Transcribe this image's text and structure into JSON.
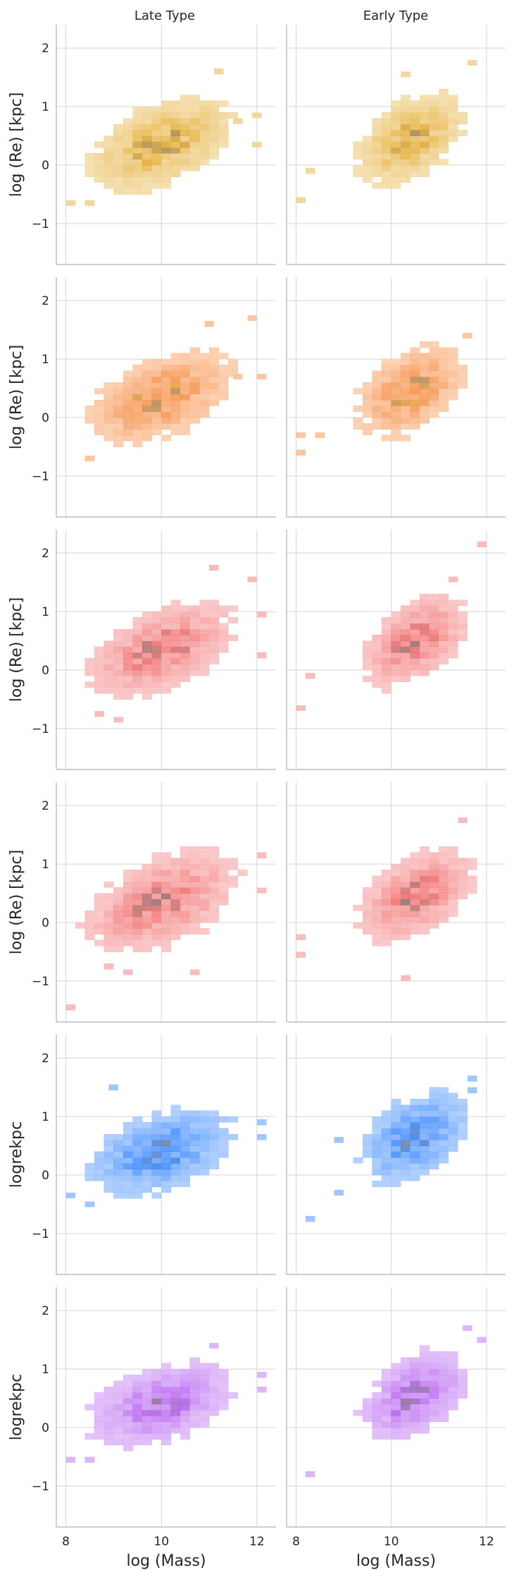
{
  "chart_data": {
    "type": "heatmap",
    "description_kind": "2D histogram facet grid",
    "columns": [
      "Late Type",
      "Early Type"
    ],
    "xlabel": "log (Mass)",
    "xlim": [
      7.8,
      12.4
    ],
    "xticks": [
      8,
      10,
      12
    ],
    "ylim": [
      -1.7,
      2.4
    ],
    "yticks": [
      -1,
      0,
      1,
      2
    ],
    "bin_width_x": 0.2,
    "bin_height_y": 0.1,
    "rows": [
      {
        "ylabel": "log (Re) [kpc]",
        "color": "#e3a92a",
        "panels": [
          {
            "center_x": 10.0,
            "center_y": 0.35,
            "spread_x": 0.75,
            "spread_y": 0.35,
            "slope": 0.25,
            "xmin": 8.0,
            "xmax": 12.2,
            "peak": "#8c7a5c",
            "outliers": [
              [
                8.1,
                -0.65
              ],
              [
                8.5,
                -0.65
              ],
              [
                11.2,
                1.6
              ],
              [
                12.0,
                0.85
              ],
              [
                12.0,
                0.35
              ],
              [
                11.6,
                0.75
              ]
            ]
          },
          {
            "center_x": 10.4,
            "center_y": 0.45,
            "spread_x": 0.55,
            "spread_y": 0.35,
            "slope": 0.3,
            "xmin": 8.0,
            "xmax": 11.9,
            "peak": "#8c7a5c",
            "outliers": [
              [
                8.1,
                -0.6
              ],
              [
                11.7,
                1.75
              ],
              [
                10.3,
                1.55
              ],
              [
                8.3,
                -0.1
              ]
            ]
          }
        ]
      },
      {
        "ylabel": "log (Re) [kpc]",
        "color": "#f58231",
        "accent": "#f0a030",
        "panels": [
          {
            "center_x": 10.0,
            "center_y": 0.35,
            "spread_x": 0.75,
            "spread_y": 0.35,
            "slope": 0.25,
            "xmin": 8.0,
            "xmax": 12.2,
            "peak": "#8a7466",
            "outliers": [
              [
                8.5,
                -0.7
              ],
              [
                11.0,
                1.6
              ],
              [
                11.9,
                1.7
              ],
              [
                12.1,
                0.7
              ],
              [
                11.6,
                0.7
              ]
            ]
          },
          {
            "center_x": 10.4,
            "center_y": 0.45,
            "spread_x": 0.55,
            "spread_y": 0.35,
            "slope": 0.3,
            "xmin": 8.0,
            "xmax": 11.9,
            "peak": "#8a7466",
            "outliers": [
              [
                8.1,
                -0.6
              ],
              [
                8.1,
                -0.3
              ],
              [
                8.5,
                -0.3
              ],
              [
                11.6,
                1.4
              ]
            ]
          }
        ]
      },
      {
        "ylabel": "log (Re) [kpc]",
        "color": "#f26b6b",
        "panels": [
          {
            "center_x": 10.0,
            "center_y": 0.35,
            "spread_x": 0.75,
            "spread_y": 0.35,
            "slope": 0.25,
            "xmin": 8.0,
            "xmax": 12.2,
            "peak": "#8a6a6a",
            "outliers": [
              [
                9.1,
                -0.85
              ],
              [
                8.7,
                -0.75
              ],
              [
                11.1,
                1.75
              ],
              [
                11.9,
                1.55
              ],
              [
                12.1,
                0.95
              ],
              [
                12.1,
                0.25
              ]
            ]
          },
          {
            "center_x": 10.5,
            "center_y": 0.5,
            "spread_x": 0.55,
            "spread_y": 0.35,
            "slope": 0.3,
            "xmin": 8.0,
            "xmax": 11.9,
            "peak": "#8a6a6a",
            "outliers": [
              [
                8.1,
                -0.65
              ],
              [
                11.9,
                2.15
              ],
              [
                11.3,
                1.55
              ],
              [
                8.3,
                -0.1
              ]
            ]
          }
        ]
      },
      {
        "ylabel": "log (Re) [kpc]",
        "color": "#f26b6b",
        "panels": [
          {
            "center_x": 10.0,
            "center_y": 0.35,
            "spread_x": 0.8,
            "spread_y": 0.38,
            "slope": 0.25,
            "xmin": 8.0,
            "xmax": 12.2,
            "peak": "#8a6a6a",
            "outliers": [
              [
                8.1,
                -1.45
              ],
              [
                8.9,
                -0.75
              ],
              [
                9.3,
                -0.85
              ],
              [
                10.7,
                -0.85
              ],
              [
                12.1,
                1.15
              ],
              [
                12.1,
                0.55
              ]
            ]
          },
          {
            "center_x": 10.5,
            "center_y": 0.45,
            "spread_x": 0.6,
            "spread_y": 0.35,
            "slope": 0.3,
            "xmin": 8.0,
            "xmax": 11.9,
            "peak": "#8a6a6a",
            "outliers": [
              [
                8.1,
                -0.55
              ],
              [
                8.1,
                -0.25
              ],
              [
                10.3,
                -0.95
              ],
              [
                11.5,
                1.75
              ]
            ]
          }
        ]
      },
      {
        "ylabel": "logrekpc",
        "color": "#2b7fff",
        "panels": [
          {
            "center_x": 10.0,
            "center_y": 0.4,
            "spread_x": 0.75,
            "spread_y": 0.33,
            "slope": 0.2,
            "xmin": 8.0,
            "xmax": 12.2,
            "peak": "#6c7c95",
            "outliers": [
              [
                8.5,
                -0.5
              ],
              [
                8.1,
                -0.35
              ],
              [
                9.0,
                1.5
              ],
              [
                12.1,
                0.9
              ],
              [
                12.1,
                0.65
              ]
            ]
          },
          {
            "center_x": 10.5,
            "center_y": 0.65,
            "spread_x": 0.55,
            "spread_y": 0.35,
            "slope": 0.3,
            "xmin": 8.0,
            "xmax": 11.9,
            "peak": "#6c7c95",
            "outliers": [
              [
                8.3,
                -0.75
              ],
              [
                8.9,
                -0.3
              ],
              [
                11.7,
                1.65
              ],
              [
                11.7,
                1.45
              ],
              [
                8.9,
                0.6
              ]
            ]
          }
        ]
      },
      {
        "ylabel": "logrekpc",
        "color": "#b35cf0",
        "panels": [
          {
            "center_x": 10.0,
            "center_y": 0.4,
            "spread_x": 0.75,
            "spread_y": 0.33,
            "slope": 0.2,
            "xmin": 8.0,
            "xmax": 12.2,
            "peak": "#826c8f",
            "outliers": [
              [
                8.1,
                -0.55
              ],
              [
                8.5,
                -0.55
              ],
              [
                12.1,
                0.9
              ],
              [
                12.1,
                0.65
              ],
              [
                11.1,
                1.4
              ]
            ]
          },
          {
            "center_x": 10.5,
            "center_y": 0.55,
            "spread_x": 0.55,
            "spread_y": 0.35,
            "slope": 0.3,
            "xmin": 8.0,
            "xmax": 11.9,
            "peak": "#826c8f",
            "outliers": [
              [
                8.3,
                -0.8
              ],
              [
                11.6,
                1.7
              ],
              [
                11.9,
                1.5
              ]
            ]
          }
        ]
      }
    ]
  }
}
